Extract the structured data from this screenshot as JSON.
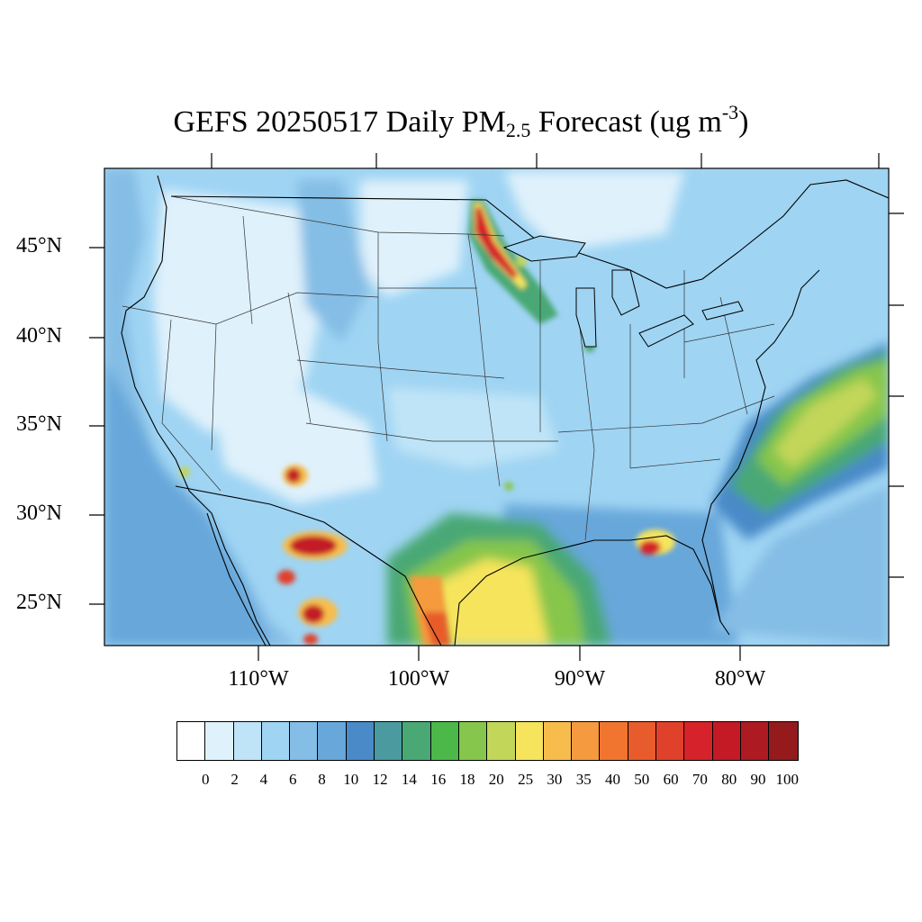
{
  "title": {
    "prefix": "GEFS 20250517 Daily PM",
    "subscript": "2.5",
    "middle": " Forecast (ug m",
    "superscript": "-3",
    "suffix": ")"
  },
  "lat_labels": [
    "45°N",
    "40°N",
    "35°N",
    "30°N",
    "25°N"
  ],
  "lon_labels": [
    "110°W",
    "100°W",
    "90°W",
    "80°W"
  ],
  "colorbar": {
    "colors": [
      "#ffffff",
      "#dff1fb",
      "#bfe4f7",
      "#9fd4f3",
      "#84bde5",
      "#68a7da",
      "#4a8ac8",
      "#4a9aa0",
      "#4aa874",
      "#4cb84a",
      "#86c64c",
      "#c2d65a",
      "#f6e45c",
      "#f7bd4c",
      "#f59a3e",
      "#f2752f",
      "#e85b2c",
      "#e0412b",
      "#d6222b",
      "#c31a26",
      "#ad1a22",
      "#941a1c"
    ],
    "labels": [
      "0",
      "2",
      "4",
      "6",
      "8",
      "10",
      "12",
      "14",
      "16",
      "18",
      "20",
      "25",
      "30",
      "35",
      "40",
      "50",
      "60",
      "70",
      "80",
      "90",
      "100"
    ]
  }
}
